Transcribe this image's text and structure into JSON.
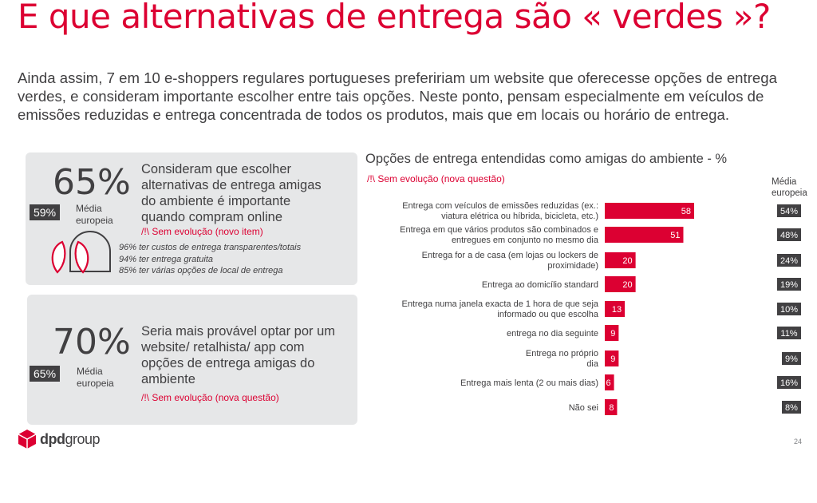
{
  "title": "E que alternativas de entrega são « verdes »?",
  "intro": "Ainda assim, 7 em 10 e-shoppers regulares portugueses prefeririam um website que oferecesse opções de entrega verdes, e consideram importante escolher entre tais opções. Neste ponto, pensam especialmente em veículos de emissões reduzidas e entrega concentrada de todos os produtos, mais que em locais ou horário de entrega.",
  "card1": {
    "big_value": "65%",
    "eu_value": "59%",
    "eu_label": "Média europeia",
    "text": "Consideram que escolher alternativas de entrega amigas do ambiente é importante quando compram online",
    "note": "/!\\ Sem evolução (novo item)",
    "details": [
      "96% ter custos de entrega transparentes/totais",
      "94% ter entrega gratuita",
      "85% ter várias opções de local de entrega"
    ]
  },
  "card2": {
    "big_value": "70%",
    "eu_value": "65%",
    "eu_label": "Média europeia",
    "text": "Seria mais provável optar por um website/ retalhista/ app com opções de entrega amigas do ambiente",
    "note": "/!\\ Sem evolução (nova questão)"
  },
  "chart_header": {
    "avg_label": "Média europeia"
  },
  "colors": {
    "brand_red": "#dc0032",
    "dark_gray": "#414042",
    "card_bg": "#e6e7e8"
  },
  "chart_data": {
    "type": "bar",
    "orientation": "horizontal",
    "title": "Opções de entrega entendidas como amigas do ambiente - %",
    "subtitle": "/!\\ Sem evolução (nova questão)",
    "categories": [
      "Entrega com veículos de emissões reduzidas (ex.: viatura elétrica ou híbrida, bicicleta, etc.)",
      "Entrega em que vários produtos são combinados e entregues em conjunto no mesmo dia",
      "Entrega for a de casa (em lojas ou lockers de proximidade)",
      "Entrega ao domicílio standard",
      "Entrega numa janela exacta de 1 hora de que seja informado ou que escolha",
      "entrega no dia seguinte",
      "Entrega no próprio dia",
      "Entrega mais lenta (2 ou mais dias)",
      "Não sei"
    ],
    "values": [
      58,
      51,
      20,
      20,
      13,
      9,
      9,
      6,
      8
    ],
    "eu_average": [
      "54%",
      "48%",
      "24%",
      "19%",
      "10%",
      "11%",
      "9%",
      "16%",
      "8%"
    ],
    "xlim": [
      0,
      70
    ],
    "grid": false
  },
  "footer": {
    "logo_bold": "dpd",
    "logo_light": "group",
    "page_number": "24"
  }
}
